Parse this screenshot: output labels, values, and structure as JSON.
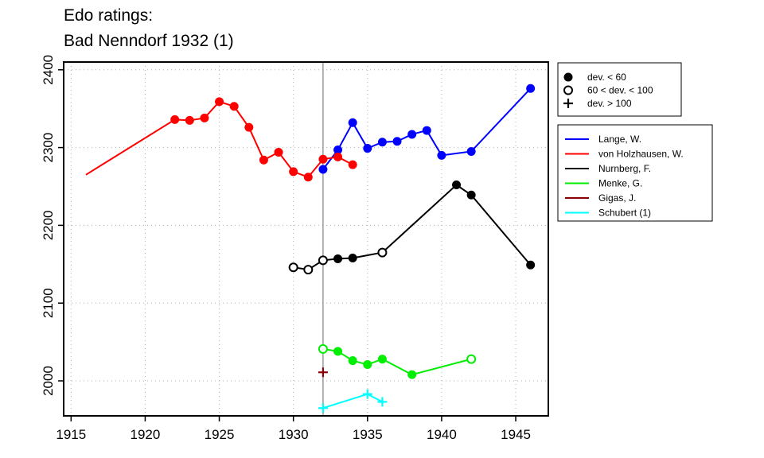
{
  "title": [
    "Edo ratings:",
    "Bad Nenndorf 1932 (1)"
  ],
  "chart_data": {
    "type": "line",
    "title": "Edo ratings: Bad Nenndorf 1932 (1)",
    "xlabel": "",
    "ylabel": "",
    "xlim": [
      1914.5,
      1947.2
    ],
    "ylim": [
      1955,
      2410
    ],
    "x_ticks": [
      1915,
      1920,
      1925,
      1930,
      1935,
      1940,
      1945
    ],
    "y_ticks": [
      2000,
      2100,
      2200,
      2300,
      2400
    ],
    "grid": true,
    "marker_line_x": 1932,
    "marker_legend": [
      {
        "label": "dev. < 60",
        "marker": "filled"
      },
      {
        "label": "60 < dev. < 100",
        "marker": "open"
      },
      {
        "label": "dev. > 100",
        "marker": "plus"
      }
    ],
    "series": [
      {
        "name": "Lange, W.",
        "color": "#0000ff",
        "points": [
          {
            "x": 1932,
            "y": 2272,
            "m": "filled"
          },
          {
            "x": 1933,
            "y": 2297,
            "m": "filled"
          },
          {
            "x": 1934,
            "y": 2332,
            "m": "filled"
          },
          {
            "x": 1935,
            "y": 2299,
            "m": "filled"
          },
          {
            "x": 1936,
            "y": 2307,
            "m": "filled"
          },
          {
            "x": 1937,
            "y": 2308,
            "m": "filled"
          },
          {
            "x": 1938,
            "y": 2317,
            "m": "filled"
          },
          {
            "x": 1939,
            "y": 2322,
            "m": "filled"
          },
          {
            "x": 1940,
            "y": 2290,
            "m": "filled"
          },
          {
            "x": 1942,
            "y": 2295,
            "m": "filled"
          },
          {
            "x": 1946,
            "y": 2376,
            "m": "filled"
          }
        ]
      },
      {
        "name": "von Holzhausen, W.",
        "color": "#ff0000",
        "points": [
          {
            "x": 1916,
            "y": 2265,
            "m": "none"
          },
          {
            "x": 1922,
            "y": 2336,
            "m": "filled"
          },
          {
            "x": 1923,
            "y": 2335,
            "m": "filled"
          },
          {
            "x": 1924,
            "y": 2338,
            "m": "filled"
          },
          {
            "x": 1925,
            "y": 2359,
            "m": "filled"
          },
          {
            "x": 1926,
            "y": 2353,
            "m": "filled"
          },
          {
            "x": 1927,
            "y": 2326,
            "m": "filled"
          },
          {
            "x": 1928,
            "y": 2284,
            "m": "filled"
          },
          {
            "x": 1929,
            "y": 2294,
            "m": "filled"
          },
          {
            "x": 1930,
            "y": 2269,
            "m": "filled"
          },
          {
            "x": 1931,
            "y": 2262,
            "m": "filled"
          },
          {
            "x": 1932,
            "y": 2285,
            "m": "filled"
          },
          {
            "x": 1933,
            "y": 2288,
            "m": "filled"
          },
          {
            "x": 1934,
            "y": 2278,
            "m": "filled"
          }
        ]
      },
      {
        "name": "Nurnberg, F.",
        "color": "#000000",
        "points": [
          {
            "x": 1930,
            "y": 2146,
            "m": "open"
          },
          {
            "x": 1931,
            "y": 2143,
            "m": "open"
          },
          {
            "x": 1932,
            "y": 2155,
            "m": "open"
          },
          {
            "x": 1933,
            "y": 2157,
            "m": "filled"
          },
          {
            "x": 1934,
            "y": 2158,
            "m": "filled"
          },
          {
            "x": 1936,
            "y": 2165,
            "m": "open"
          },
          {
            "x": 1941,
            "y": 2252,
            "m": "filled"
          },
          {
            "x": 1942,
            "y": 2239,
            "m": "filled"
          },
          {
            "x": 1946,
            "y": 2149,
            "m": "filled"
          }
        ]
      },
      {
        "name": "Menke, G.",
        "color": "#00ee00",
        "points": [
          {
            "x": 1932,
            "y": 2041,
            "m": "open"
          },
          {
            "x": 1933,
            "y": 2038,
            "m": "filled"
          },
          {
            "x": 1934,
            "y": 2026,
            "m": "filled"
          },
          {
            "x": 1935,
            "y": 2021,
            "m": "filled"
          },
          {
            "x": 1936,
            "y": 2028,
            "m": "filled"
          },
          {
            "x": 1938,
            "y": 2008,
            "m": "filled"
          },
          {
            "x": 1942,
            "y": 2028,
            "m": "open"
          }
        ]
      },
      {
        "name": "Gigas, J.",
        "color": "#8b0000",
        "points": [
          {
            "x": 1932,
            "y": 2011,
            "m": "plus"
          }
        ]
      },
      {
        "name": "Schubert (1)",
        "color": "#00ffff",
        "points": [
          {
            "x": 1932,
            "y": 1965,
            "m": "plus"
          },
          {
            "x": 1935,
            "y": 1983,
            "m": "plus"
          },
          {
            "x": 1936,
            "y": 1973,
            "m": "plus"
          }
        ]
      }
    ]
  }
}
